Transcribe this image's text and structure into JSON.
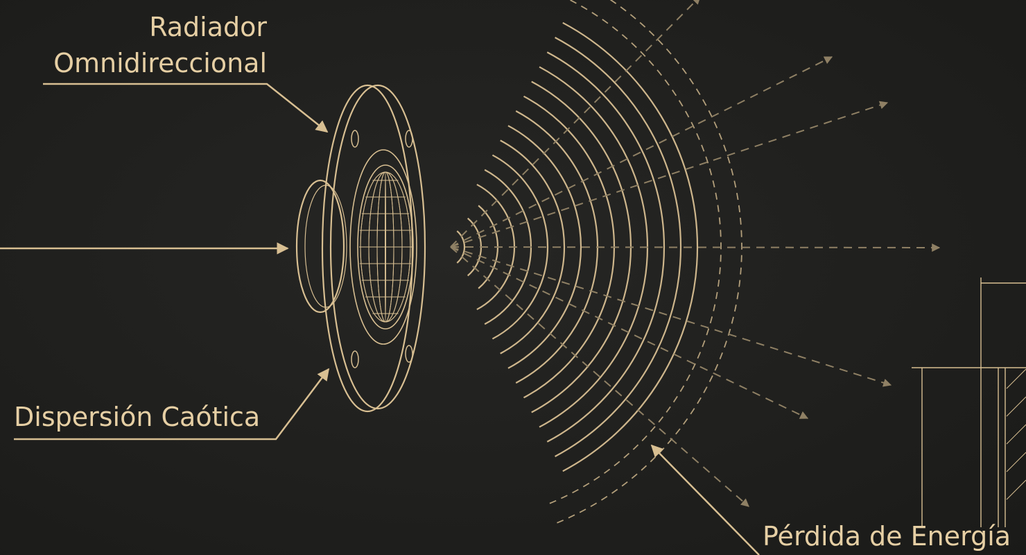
{
  "labels": {
    "radiator": [
      "Radiador",
      "Omnidireccional"
    ],
    "dispersion": "Dispersión Caótica",
    "energy_loss": "Pérdida de Energía"
  }
}
